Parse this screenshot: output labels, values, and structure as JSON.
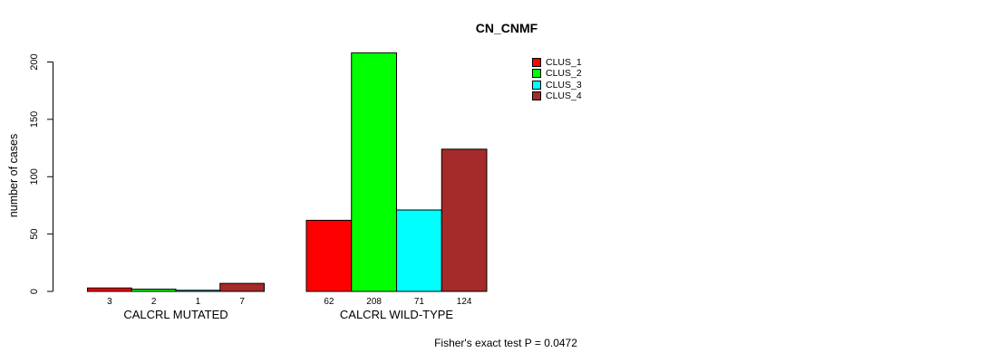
{
  "chart_data": {
    "type": "bar",
    "title": "CN_CNMF",
    "ylabel": "number of cases",
    "xlabel": "",
    "categories": [
      "CALCRL MUTATED",
      "CALCRL WILD-TYPE"
    ],
    "series": [
      {
        "name": "CLUS_1",
        "color": "#ff0000",
        "values": [
          3,
          62
        ]
      },
      {
        "name": "CLUS_2",
        "color": "#00ff00",
        "values": [
          2,
          208
        ]
      },
      {
        "name": "CLUS_3",
        "color": "#00ffff",
        "values": [
          1,
          71
        ]
      },
      {
        "name": "CLUS_4",
        "color": "#a52a2a",
        "values": [
          7,
          124
        ]
      }
    ],
    "yticks": [
      0,
      50,
      100,
      150,
      200
    ],
    "ylim": [
      0,
      200
    ],
    "grid": false,
    "legend_position": "top-right",
    "bar_value_labels": true,
    "annotation": "Fisher's exact test P = 0.0472"
  }
}
